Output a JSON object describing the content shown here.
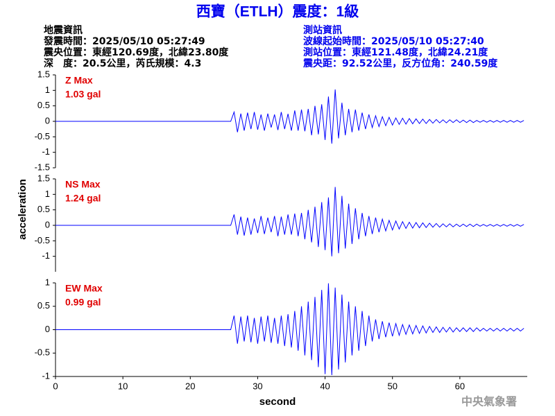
{
  "title": "西寶（ETLH）震度：1級",
  "quake_info": [
    "地震資訊",
    "發震時間：2025/05/10 05:27:49",
    "震央位置：東經120.69度，北緯23.80度",
    "深　度：20.5公里，芮氏規模：4.3"
  ],
  "station_info": [
    "測站資訊",
    "波線起始時間：2025/05/10 05:27:40",
    "測站位置：東經121.48度，北緯24.21度",
    "震央距：92.52公里，反方位角：240.59度"
  ],
  "x_label": "second",
  "y_label": "acceleration",
  "footer": "中央氣象署",
  "chart_data": [
    {
      "type": "line",
      "color": "#0000ff",
      "xlim": [
        0,
        70
      ],
      "ylim": [
        -1.5,
        1.5
      ],
      "yticks": [
        1.5,
        1,
        0.5,
        0,
        -0.5,
        -1,
        -1.5
      ],
      "annotation": "1.03 gal",
      "x": [
        0,
        26,
        26.5,
        27,
        27.5,
        28,
        28.5,
        29,
        29.5,
        30,
        30.5,
        31,
        31.5,
        32,
        32.5,
        33,
        33.5,
        34,
        34.5,
        35,
        35.5,
        36,
        36.5,
        37,
        37.5,
        38,
        38.5,
        39,
        39.5,
        40,
        40.5,
        41,
        41.5,
        42,
        42.5,
        43,
        43.5,
        44,
        44.5,
        45,
        45.5,
        46,
        46.5,
        47,
        47.5,
        48,
        48.5,
        49,
        49.5,
        50,
        50.5,
        51,
        51.5,
        52,
        52.5,
        53,
        53.5,
        54,
        54.5,
        55,
        55.5,
        56,
        56.5,
        57,
        57.5,
        58,
        58.5,
        59,
        59.5,
        60,
        60.5,
        61,
        61.5,
        62,
        62.5,
        63,
        63.5,
        64,
        64.5,
        65,
        65.5,
        66,
        66.5,
        67,
        67.5,
        68,
        68.5,
        69,
        69.5
      ],
      "series": [
        {
          "name": "Z Max",
          "color": "#0000ff",
          "values": [
            0,
            0,
            0.3,
            -0.35,
            0.25,
            -0.3,
            0.28,
            -0.25,
            0.3,
            -0.27,
            0.22,
            -0.3,
            0.25,
            -0.2,
            0.22,
            -0.28,
            0.3,
            -0.25,
            0.24,
            -0.3,
            0.35,
            -0.3,
            0.38,
            -0.32,
            0.4,
            -0.45,
            0.5,
            -0.42,
            0.55,
            -0.6,
            0.8,
            -0.72,
            1.03,
            -0.55,
            0.6,
            -0.45,
            0.4,
            -0.35,
            0.38,
            -0.3,
            0.28,
            -0.25,
            0.22,
            -0.2,
            0.18,
            -0.17,
            0.15,
            -0.14,
            0.13,
            -0.12,
            0.11,
            -0.1,
            0.1,
            -0.09,
            0.09,
            -0.08,
            0.08,
            -0.07,
            0.07,
            -0.07,
            0.06,
            -0.06,
            0.06,
            -0.05,
            0.05,
            -0.05,
            0.05,
            -0.04,
            0.05,
            -0.04,
            0.04,
            -0.04,
            0.04,
            -0.04,
            0.03,
            -0.03,
            0.03,
            -0.03,
            0.03,
            -0.03,
            0.03,
            -0.03,
            0.03,
            -0.03,
            0.03,
            -0.03,
            0.03,
            -0.03,
            0.03
          ]
        }
      ]
    },
    {
      "type": "line",
      "color": "#0000ff",
      "xlim": [
        0,
        70
      ],
      "ylim": [
        -1.5,
        1.5
      ],
      "yticks": [
        1.5,
        1,
        0.5,
        0,
        -0.5,
        -1
      ],
      "annotation": "1.24 gal",
      "x": [
        0,
        26,
        26.5,
        27,
        27.5,
        28,
        28.5,
        29,
        29.5,
        30,
        30.5,
        31,
        31.5,
        32,
        32.5,
        33,
        33.5,
        34,
        34.5,
        35,
        35.5,
        36,
        36.5,
        37,
        37.5,
        38,
        38.5,
        39,
        39.5,
        40,
        40.5,
        41,
        41.5,
        42,
        42.5,
        43,
        43.5,
        44,
        44.5,
        45,
        45.5,
        46,
        46.5,
        47,
        47.5,
        48,
        48.5,
        49,
        49.5,
        50,
        50.5,
        51,
        51.5,
        52,
        52.5,
        53,
        53.5,
        54,
        54.5,
        55,
        55.5,
        56,
        56.5,
        57,
        57.5,
        58,
        58.5,
        59,
        59.5,
        60,
        60.5,
        61,
        61.5,
        62,
        62.5,
        63,
        63.5,
        64,
        64.5,
        65,
        65.5,
        66,
        66.5,
        67,
        67.5,
        68,
        68.5,
        69,
        69.5
      ],
      "series": [
        {
          "name": "NS Max",
          "color": "#0000ff",
          "values": [
            0,
            0,
            0.35,
            -0.3,
            0.28,
            -0.33,
            0.25,
            -0.3,
            0.22,
            -0.25,
            0.3,
            -0.28,
            0.25,
            -0.22,
            0.3,
            -0.35,
            0.28,
            -0.3,
            0.35,
            -0.3,
            0.38,
            -0.35,
            0.4,
            -0.45,
            0.5,
            -0.55,
            0.6,
            -0.7,
            0.75,
            -0.8,
            0.9,
            -1.0,
            1.24,
            -0.9,
            0.95,
            -0.75,
            0.7,
            -0.6,
            0.55,
            -0.45,
            0.4,
            -0.35,
            0.3,
            -0.28,
            0.25,
            -0.22,
            0.2,
            -0.18,
            0.16,
            -0.15,
            0.14,
            -0.12,
            0.12,
            -0.1,
            0.1,
            -0.09,
            0.09,
            -0.08,
            0.08,
            -0.07,
            0.07,
            -0.06,
            0.06,
            -0.06,
            0.05,
            -0.05,
            0.05,
            -0.05,
            0.04,
            -0.04,
            0.04,
            -0.04,
            0.04,
            -0.04,
            0.04,
            -0.03,
            0.03,
            -0.03,
            0.03,
            -0.03,
            0.03,
            -0.03,
            0.03,
            -0.03,
            0.03,
            -0.03,
            0.03,
            -0.03,
            0.03
          ]
        }
      ]
    },
    {
      "type": "line",
      "color": "#0000ff",
      "xlim": [
        0,
        70
      ],
      "ylim": [
        -1,
        1
      ],
      "yticks": [
        1,
        0.5,
        0,
        -0.5,
        -1
      ],
      "xticks": [
        0,
        10,
        20,
        30,
        40,
        50,
        60
      ],
      "annotation": "0.99 gal",
      "x": [
        0,
        26,
        26.5,
        27,
        27.5,
        28,
        28.5,
        29,
        29.5,
        30,
        30.5,
        31,
        31.5,
        32,
        32.5,
        33,
        33.5,
        34,
        34.5,
        35,
        35.5,
        36,
        36.5,
        37,
        37.5,
        38,
        38.5,
        39,
        39.5,
        40,
        40.5,
        41,
        41.5,
        42,
        42.5,
        43,
        43.5,
        44,
        44.5,
        45,
        45.5,
        46,
        46.5,
        47,
        47.5,
        48,
        48.5,
        49,
        49.5,
        50,
        50.5,
        51,
        51.5,
        52,
        52.5,
        53,
        53.5,
        54,
        54.5,
        55,
        55.5,
        56,
        56.5,
        57,
        57.5,
        58,
        58.5,
        59,
        59.5,
        60,
        60.5,
        61,
        61.5,
        62,
        62.5,
        63,
        63.5,
        64,
        64.5,
        65,
        65.5,
        66,
        66.5,
        67,
        67.5,
        68,
        68.5,
        69,
        69.5
      ],
      "series": [
        {
          "name": "EW Max",
          "color": "#0000ff",
          "values": [
            0,
            0,
            0.3,
            -0.3,
            0.28,
            -0.25,
            0.3,
            -0.27,
            0.25,
            -0.3,
            0.28,
            -0.25,
            0.3,
            -0.28,
            0.25,
            -0.3,
            0.3,
            -0.35,
            0.33,
            -0.38,
            0.4,
            -0.45,
            0.5,
            -0.55,
            0.6,
            -0.65,
            0.7,
            -0.8,
            0.85,
            -0.95,
            0.99,
            -0.97,
            0.9,
            -0.85,
            0.75,
            -0.7,
            0.6,
            -0.55,
            0.5,
            -0.45,
            0.4,
            -0.35,
            0.3,
            -0.25,
            0.22,
            -0.2,
            0.18,
            -0.16,
            0.15,
            -0.14,
            0.13,
            -0.12,
            0.11,
            -0.1,
            0.1,
            -0.09,
            0.09,
            -0.08,
            0.08,
            -0.07,
            0.07,
            -0.06,
            0.06,
            -0.06,
            0.05,
            -0.05,
            0.05,
            -0.05,
            0.04,
            -0.04,
            0.04,
            -0.04,
            0.04,
            -0.04,
            0.04,
            -0.03,
            0.03,
            -0.03,
            0.03,
            -0.03,
            0.03,
            -0.03,
            0.03,
            -0.03,
            0.03,
            -0.03,
            0.03,
            -0.03,
            0.03
          ]
        }
      ]
    }
  ]
}
